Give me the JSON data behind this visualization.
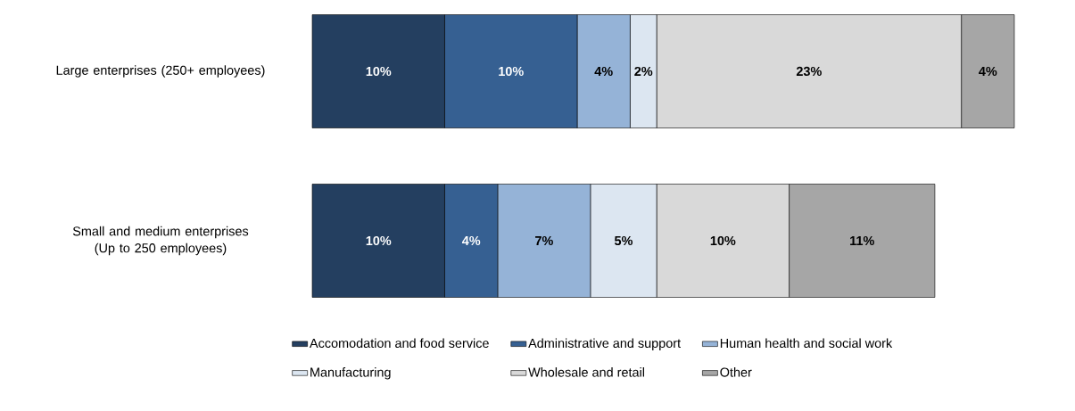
{
  "chart_data": {
    "type": "bar",
    "orientation": "horizontal",
    "stacked": true,
    "tick_labels": "y",
    "legend": "bottom",
    "categories": [
      "Large enterprises (250+ employees)",
      "Small and medium enterprises (Up to 250 employees)"
    ],
    "series": [
      {
        "name": "Accomodation and food service",
        "color": "#243f60",
        "values": [
          10,
          10
        ],
        "value_labels": [
          "10%",
          "10%"
        ]
      },
      {
        "name": "Administrative and support",
        "color": "#366092",
        "values": [
          10,
          4
        ],
        "value_labels": [
          "10%",
          "4%"
        ]
      },
      {
        "name": "Human health and social work",
        "color": "#95b3d7",
        "values": [
          4,
          7
        ],
        "value_labels": [
          "4%",
          "7%"
        ]
      },
      {
        "name": "Manufacturing",
        "color": "#dce6f1",
        "values": [
          2,
          5
        ],
        "value_labels": [
          "2%",
          "5%"
        ]
      },
      {
        "name": "Wholesale and retail",
        "color": "#d9d9d9",
        "values": [
          23,
          10
        ],
        "value_labels": [
          "23%",
          "10%"
        ]
      },
      {
        "name": "Other",
        "color": "#a6a6a6",
        "values": [
          4,
          11
        ],
        "value_labels": [
          "4%",
          "11%"
        ]
      }
    ]
  }
}
